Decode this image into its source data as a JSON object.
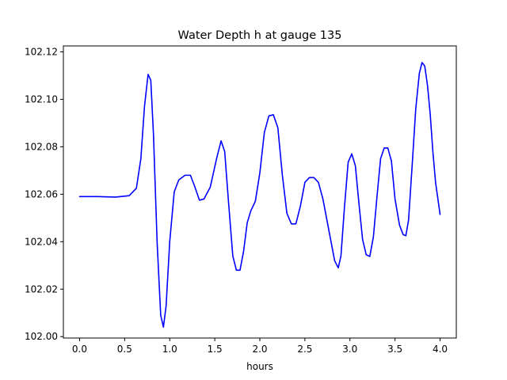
{
  "chart_data": {
    "type": "line",
    "title": "Water Depth h at gauge 135",
    "xlabel": "hours",
    "ylabel": "",
    "xlim": [
      -0.18,
      4.18
    ],
    "ylim": [
      101.9994,
      102.1225
    ],
    "grid": false,
    "xticks": [
      0.0,
      0.5,
      1.0,
      1.5,
      2.0,
      2.5,
      3.0,
      3.5,
      4.0
    ],
    "xtick_labels": [
      "0.0",
      "0.5",
      "1.0",
      "1.5",
      "2.0",
      "2.5",
      "3.0",
      "3.5",
      "4.0"
    ],
    "yticks": [
      102.0,
      102.02,
      102.04,
      102.06,
      102.08,
      102.1,
      102.12
    ],
    "ytick_labels": [
      "102.00",
      "102.02",
      "102.04",
      "102.06",
      "102.08",
      "102.10",
      "102.12"
    ],
    "line_color": "#0000ff",
    "series": [
      {
        "x": [
          0.0,
          0.2,
          0.4,
          0.55,
          0.63,
          0.68,
          0.72,
          0.76,
          0.79,
          0.82,
          0.86,
          0.9,
          0.93,
          0.96,
          1.0,
          1.05,
          1.1,
          1.17,
          1.23,
          1.28,
          1.33,
          1.38,
          1.45,
          1.52,
          1.57,
          1.61,
          1.65,
          1.7,
          1.74,
          1.78,
          1.82,
          1.86,
          1.9,
          1.95,
          2.0,
          2.05,
          2.1,
          2.15,
          2.2,
          2.25,
          2.3,
          2.35,
          2.4,
          2.45,
          2.5,
          2.55,
          2.6,
          2.65,
          2.7,
          2.75,
          2.79,
          2.83,
          2.87,
          2.9,
          2.94,
          2.98,
          3.02,
          3.06,
          3.1,
          3.14,
          3.18,
          3.22,
          3.26,
          3.3,
          3.34,
          3.38,
          3.42,
          3.46,
          3.5,
          3.55,
          3.59,
          3.62,
          3.65,
          3.69,
          3.73,
          3.77,
          3.8,
          3.83,
          3.86,
          3.89,
          3.92,
          3.95,
          4.0
        ],
        "y": [
          102.059,
          102.059,
          102.0588,
          102.0594,
          102.0625,
          102.075,
          102.097,
          102.1105,
          102.108,
          102.085,
          102.04,
          102.009,
          102.004,
          102.013,
          102.04,
          102.061,
          102.066,
          102.068,
          102.068,
          102.063,
          102.0575,
          102.058,
          102.063,
          102.075,
          102.0825,
          102.078,
          102.058,
          102.034,
          102.028,
          102.028,
          102.036,
          102.048,
          102.053,
          102.057,
          102.069,
          102.086,
          102.093,
          102.0935,
          102.088,
          102.068,
          102.052,
          102.0475,
          102.0475,
          102.055,
          102.065,
          102.067,
          102.067,
          102.065,
          102.058,
          102.048,
          102.04,
          102.032,
          102.029,
          102.034,
          102.055,
          102.0735,
          102.077,
          102.072,
          102.056,
          102.041,
          102.0345,
          102.0338,
          102.042,
          102.059,
          102.075,
          102.0795,
          102.0795,
          102.074,
          102.058,
          102.047,
          102.043,
          102.0425,
          102.049,
          102.072,
          102.096,
          102.111,
          102.1155,
          102.114,
          102.106,
          102.094,
          102.078,
          102.065,
          102.0515
        ]
      }
    ]
  }
}
